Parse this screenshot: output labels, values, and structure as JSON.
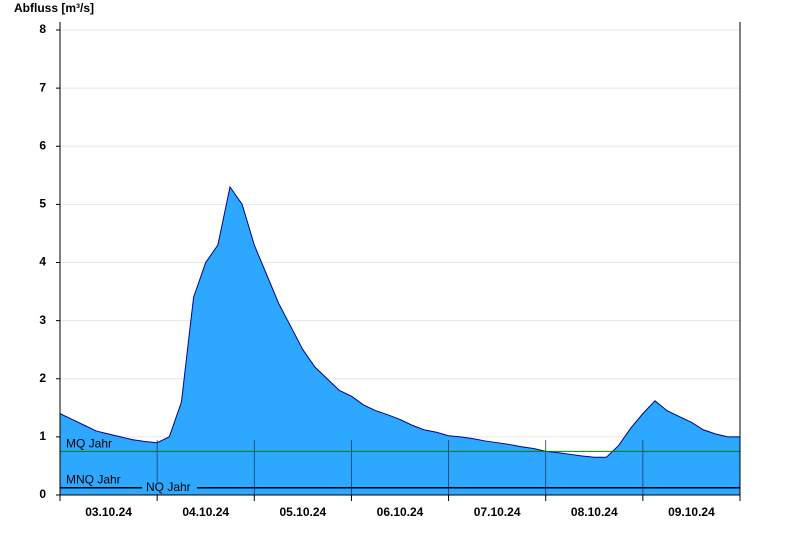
{
  "chart_data": {
    "type": "area",
    "title": "Abfluss [m³/s]",
    "categories": [
      null,
      null,
      null,
      null,
      "03.10.24",
      null,
      null,
      null,
      null,
      null,
      null,
      null,
      "04.10.24",
      null,
      null,
      null,
      null,
      null,
      null,
      null,
      "05.10.24",
      null,
      null,
      null,
      null,
      null,
      null,
      null,
      "06.10.24",
      null,
      null,
      null,
      null,
      null,
      null,
      null,
      "07.10.24",
      null,
      null,
      null,
      null,
      null,
      null,
      null,
      "08.10.24",
      null,
      null,
      null,
      null,
      null,
      null,
      null,
      "09.10.24",
      null,
      null,
      null,
      null
    ],
    "series": [
      {
        "name": "Abfluss",
        "color": "#2ea8ff",
        "line_color": "#00008b",
        "values": [
          1.4,
          1.3,
          1.2,
          1.1,
          1.05,
          1.0,
          0.95,
          0.92,
          0.9,
          1.0,
          1.6,
          3.4,
          4.0,
          4.3,
          5.3,
          5.0,
          4.3,
          3.8,
          3.3,
          2.9,
          2.5,
          2.2,
          2.0,
          1.8,
          1.7,
          1.55,
          1.45,
          1.38,
          1.3,
          1.2,
          1.12,
          1.08,
          1.02,
          1.0,
          0.97,
          0.93,
          0.9,
          0.87,
          0.83,
          0.8,
          0.75,
          0.73,
          0.7,
          0.67,
          0.65,
          0.65,
          0.85,
          1.15,
          1.4,
          1.62,
          1.45,
          1.35,
          1.25,
          1.12,
          1.05,
          1.0,
          1.0
        ]
      }
    ],
    "reference_lines": [
      {
        "label": "MQ Jahr",
        "value": 0.75,
        "color": "#008000"
      },
      {
        "label": "MNQ Jahr",
        "value": 0.13,
        "color": "#000000"
      },
      {
        "label": "NQ Jahr",
        "value": 0.12,
        "color": "#000000"
      }
    ],
    "ylim": [
      0,
      8
    ],
    "yticks": [
      0,
      1,
      2,
      3,
      4,
      5,
      6,
      7,
      8
    ],
    "grid": true
  }
}
